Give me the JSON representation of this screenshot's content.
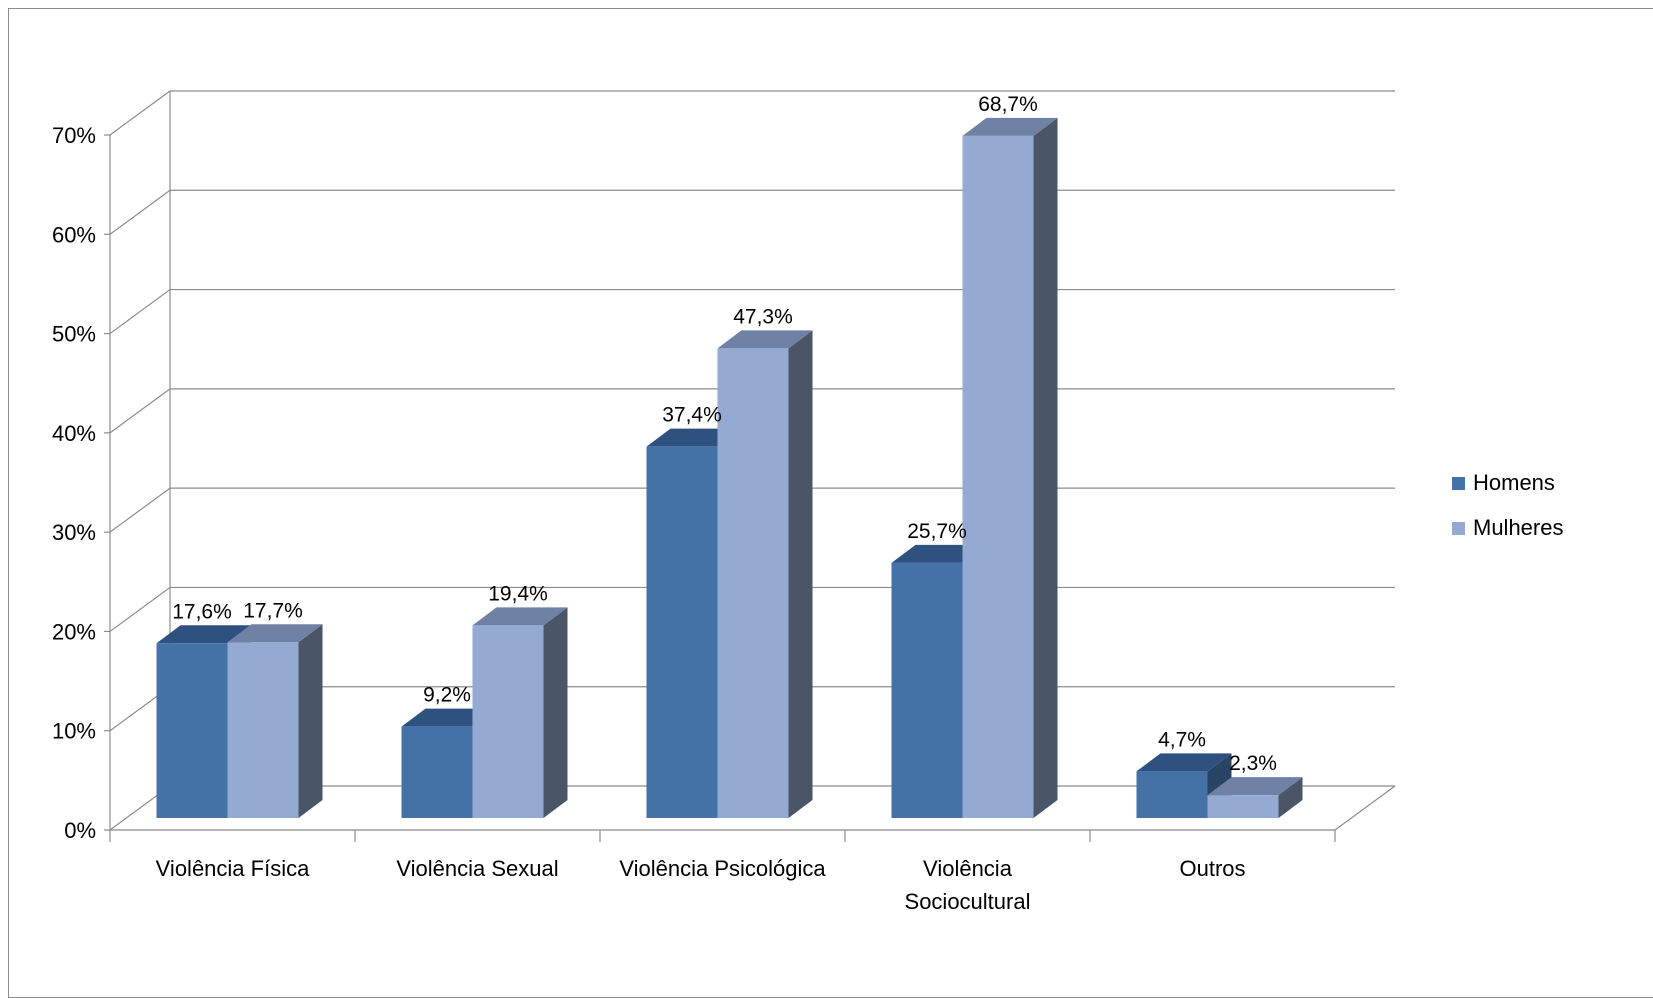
{
  "chart_data": {
    "type": "bar",
    "style": "3d-clustered-column",
    "title": "",
    "xlabel": "",
    "ylabel": "",
    "categories": [
      [
        "Violência Física"
      ],
      [
        "Violência Sexual"
      ],
      [
        "Violência Psicológica"
      ],
      [
        "Violência",
        "Sociocultural"
      ],
      [
        "Outros"
      ]
    ],
    "series": [
      {
        "name": "Homens",
        "values": [
          17.6,
          9.2,
          37.4,
          25.7,
          4.7
        ],
        "labels": [
          "17,6%",
          "9,2%",
          "37,4%",
          "25,7%",
          "4,7%"
        ],
        "color": "#4472a6",
        "top_color": "#2e5180",
        "side_color": "#2a4466"
      },
      {
        "name": "Mulheres",
        "values": [
          17.7,
          19.4,
          47.3,
          68.7,
          2.3
        ],
        "labels": [
          "17,7%",
          "19,4%",
          "47,3%",
          "68,7%",
          "2,3%"
        ],
        "color": "#95aad3",
        "top_color": "#6f82a6",
        "side_color": "#4a5568"
      }
    ],
    "ylim": [
      0,
      70
    ],
    "yticks": [
      0,
      10,
      20,
      30,
      40,
      50,
      60,
      70
    ],
    "ytick_labels": [
      "0%",
      "10%",
      "20%",
      "30%",
      "40%",
      "50%",
      "60%",
      "70%"
    ],
    "grid": true,
    "legend": "right"
  }
}
